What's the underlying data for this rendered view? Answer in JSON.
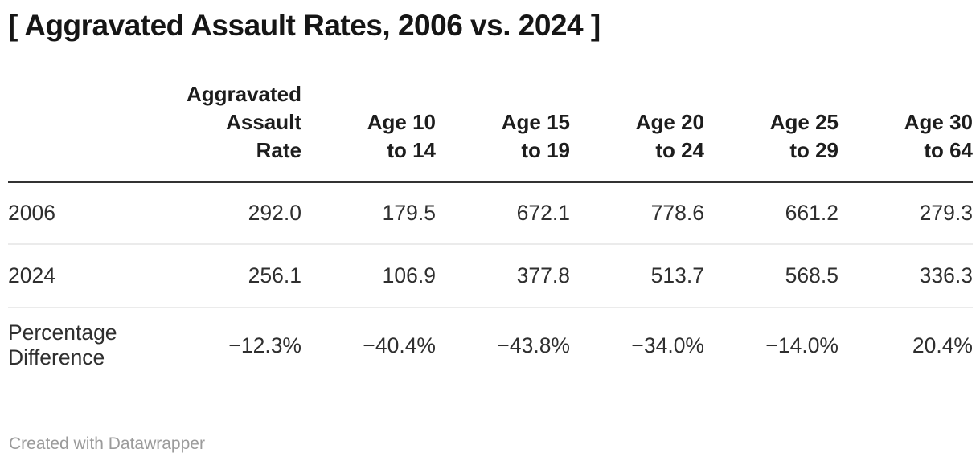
{
  "title": "[ Aggravated Assault Rates, 2006 vs. 2024 ]",
  "colors": {
    "title_text": "#161616",
    "header_text": "#1d1d1d",
    "body_text": "#2f2f2f",
    "header_rule": "#333333",
    "row_rule": "#ebebeb",
    "credit_text": "#9b9b9b",
    "background": "#ffffff"
  },
  "table": {
    "columns": [
      {
        "label": ""
      },
      {
        "label": "Aggravated\nAssault\nRate"
      },
      {
        "label": "Age 10\nto 14"
      },
      {
        "label": "Age 15\nto 19"
      },
      {
        "label": "Age 20\nto 24"
      },
      {
        "label": "Age 25\nto 29"
      },
      {
        "label": "Age 30\nto 64"
      }
    ],
    "rows": [
      {
        "label": "2006",
        "values": [
          "292.0",
          "179.5",
          "672.1",
          "778.6",
          "661.2",
          "279.3"
        ]
      },
      {
        "label": "2024",
        "values": [
          "256.1",
          "106.9",
          "377.8",
          "513.7",
          "568.5",
          "336.3"
        ]
      },
      {
        "label": "Percentage\nDifference",
        "values": [
          "−12.3%",
          "−40.4%",
          "−43.8%",
          "−34.0%",
          "−14.0%",
          "20.4%"
        ]
      }
    ]
  },
  "footer": {
    "credit": "Created with Datawrapper"
  },
  "chart_data": {
    "type": "table",
    "title": "[ Aggravated Assault Rates, 2006 vs. 2024 ]",
    "categories": [
      "Aggravated Assault Rate",
      "Age 10 to 14",
      "Age 15 to 19",
      "Age 20 to 24",
      "Age 25 to 29",
      "Age 30 to 64"
    ],
    "series": [
      {
        "name": "2006",
        "values": [
          292.0,
          179.5,
          672.1,
          778.6,
          661.2,
          279.3
        ]
      },
      {
        "name": "2024",
        "values": [
          256.1,
          106.9,
          377.8,
          513.7,
          568.5,
          336.3
        ]
      },
      {
        "name": "Percentage Difference",
        "unit": "%",
        "values": [
          -12.3,
          -40.4,
          -43.8,
          -34.0,
          -14.0,
          20.4
        ]
      }
    ]
  }
}
